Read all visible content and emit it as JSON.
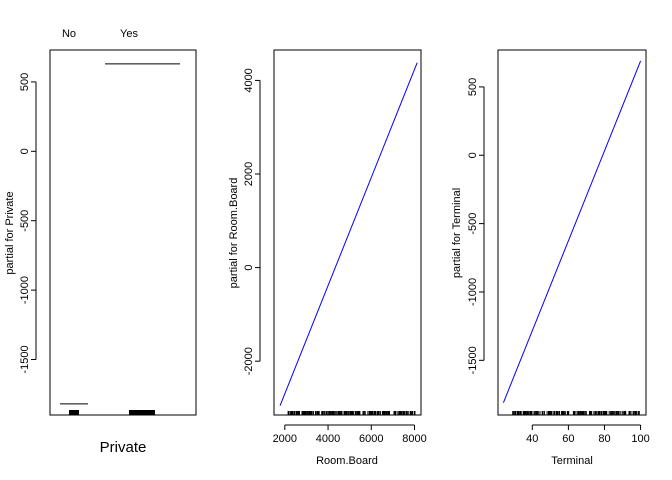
{
  "chart_data": [
    {
      "type": "line",
      "subtype": "factor-partial",
      "xlabel": "Private",
      "ylabel": "partial for Private",
      "categories": [
        "No",
        "Yes"
      ],
      "values": [
        -1820,
        630
      ],
      "ylim": [
        -1900,
        730
      ],
      "yticks": [
        "500",
        "0",
        "-500",
        "-1000",
        "-1500"
      ],
      "rug": "category group ticks at bottom"
    },
    {
      "type": "line",
      "xlabel": "Room.Board",
      "ylabel": "partial for Room.Board",
      "x": [
        1780,
        8124
      ],
      "y": [
        -2950,
        4380
      ],
      "xlim": [
        1500,
        8300
      ],
      "ylim": [
        -3150,
        4650
      ],
      "xticks": [
        "2000",
        "4000",
        "6000",
        "8000"
      ],
      "yticks": [
        "-2000",
        "0",
        "2000",
        "4000"
      ],
      "line_color": "#0000ff",
      "rug": "dense tick marks along x axis"
    },
    {
      "type": "line",
      "xlabel": "Terminal",
      "ylabel": "partial for Terminal",
      "x": [
        24,
        100
      ],
      "y": [
        -1810,
        690
      ],
      "xlim": [
        21,
        103
      ],
      "ylim": [
        -1900,
        770
      ],
      "xticks": [
        "40",
        "60",
        "80",
        "100"
      ],
      "yticks": [
        "500",
        "0",
        "-500",
        "-1000",
        "-1500"
      ],
      "line_color": "#0000ff",
      "rug": "dense tick marks along x axis"
    }
  ]
}
